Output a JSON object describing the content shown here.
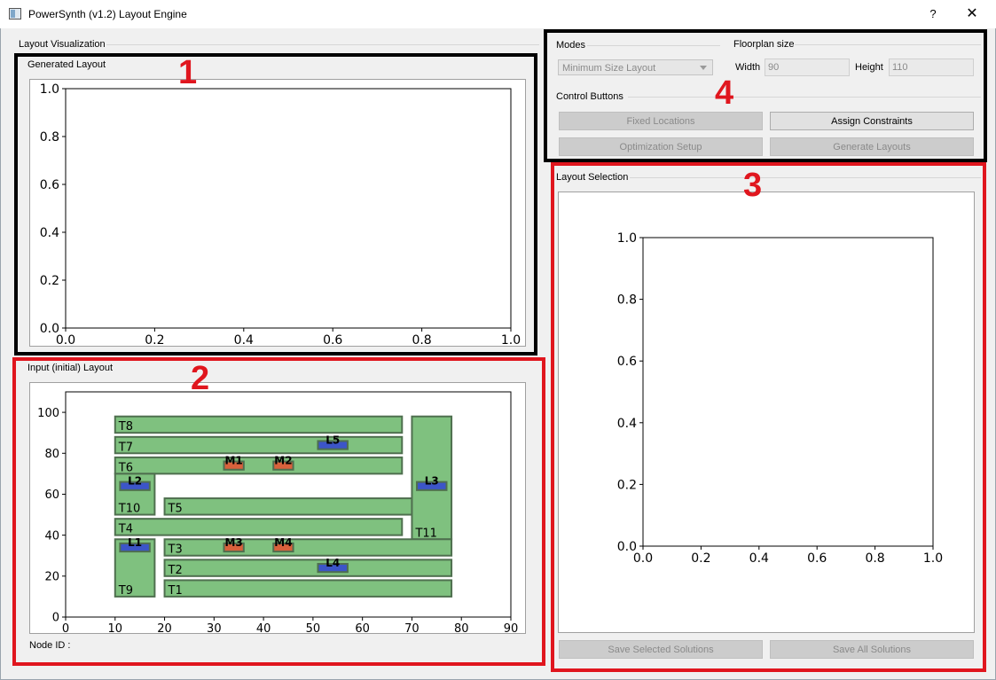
{
  "window": {
    "title": "PowerSynth (v1.2) Layout Engine",
    "help": "?",
    "close": "✕"
  },
  "left": {
    "section_label": "Layout Visualization",
    "generated": {
      "title": "Generated Layout",
      "yticks": [
        "1.0",
        "0.8",
        "0.6",
        "0.4",
        "0.2",
        "0.0"
      ],
      "xticks": [
        "0.0",
        "0.2",
        "0.4",
        "0.6",
        "0.8",
        "1.0"
      ]
    },
    "input": {
      "title": "Input (initial) Layout",
      "node_id_label": "Node ID :",
      "yticks": [
        "100",
        "80",
        "60",
        "40",
        "20",
        "0"
      ],
      "xticks": [
        "0",
        "10",
        "20",
        "30",
        "40",
        "50",
        "60",
        "70",
        "80",
        "90"
      ]
    }
  },
  "right": {
    "modes": {
      "title": "Modes",
      "selected": "Minimum Size Layout"
    },
    "floorplan": {
      "title": "Floorplan size",
      "width_label": "Width",
      "width_value": "90",
      "height_label": "Height",
      "height_value": "110"
    },
    "control": {
      "title": "Control Buttons",
      "fixed_locations": "Fixed Locations",
      "assign_constraints": "Assign Constraints",
      "optimization_setup": "Optimization Setup",
      "generate_layouts": "Generate Layouts"
    },
    "selection": {
      "title": "Layout Selection",
      "yticks": [
        "1.0",
        "0.8",
        "0.6",
        "0.4",
        "0.2",
        "0.0"
      ],
      "xticks": [
        "0.0",
        "0.2",
        "0.4",
        "0.6",
        "0.8",
        "1.0"
      ],
      "save_selected": "Save Selected Solutions",
      "save_all": "Save All Solutions"
    }
  },
  "annotations": {
    "n1": "1",
    "n2": "2",
    "n3": "3",
    "n4": "4"
  },
  "colors": {
    "trace": "#7fc17f",
    "trace_edge": "#4f6f4f",
    "lead": "#3c55c8",
    "mosfet": "#d8613c",
    "highlight_red": "#e0161e"
  },
  "chart_data": [
    {
      "type": "scatter",
      "title": "Generated Layout",
      "xlim": [
        0,
        1
      ],
      "ylim": [
        0,
        1
      ],
      "series": []
    },
    {
      "type": "layout",
      "title": "Input (initial) Layout",
      "xlim": [
        0,
        90
      ],
      "ylim": [
        0,
        110
      ],
      "traces": [
        {
          "label": "T8",
          "x": 10,
          "y": 90,
          "w": 58,
          "h": 8
        },
        {
          "label": "T7",
          "x": 10,
          "y": 80,
          "w": 58,
          "h": 8
        },
        {
          "label": "T6",
          "x": 10,
          "y": 70,
          "w": 58,
          "h": 8
        },
        {
          "label": "T10",
          "x": 10,
          "y": 50,
          "w": 8,
          "h": 20
        },
        {
          "label": "T5",
          "x": 20,
          "y": 50,
          "w": 50,
          "h": 8
        },
        {
          "label": "T4",
          "x": 10,
          "y": 40,
          "w": 58,
          "h": 8
        },
        {
          "label": "T11",
          "x": 70,
          "y": 38,
          "w": 8,
          "h": 60
        },
        {
          "label": "T3",
          "x": 20,
          "y": 30,
          "w": 58,
          "h": 8
        },
        {
          "label": "T9",
          "x": 10,
          "y": 10,
          "w": 8,
          "h": 28
        },
        {
          "label": "T2",
          "x": 20,
          "y": 20,
          "w": 58,
          "h": 8
        },
        {
          "label": "T1",
          "x": 20,
          "y": 10,
          "w": 58,
          "h": 8
        }
      ],
      "leads": [
        {
          "label": "L5",
          "x": 51,
          "y": 82,
          "w": 6,
          "h": 4
        },
        {
          "label": "L2",
          "x": 11,
          "y": 62,
          "w": 6,
          "h": 4
        },
        {
          "label": "L3",
          "x": 71,
          "y": 62,
          "w": 6,
          "h": 4
        },
        {
          "label": "L1",
          "x": 11,
          "y": 32,
          "w": 6,
          "h": 4
        },
        {
          "label": "L4",
          "x": 51,
          "y": 22,
          "w": 6,
          "h": 4
        }
      ],
      "devices": [
        {
          "label": "M1",
          "x": 32,
          "y": 72,
          "w": 4,
          "h": 4
        },
        {
          "label": "M2",
          "x": 42,
          "y": 72,
          "w": 4,
          "h": 4
        },
        {
          "label": "M3",
          "x": 32,
          "y": 32,
          "w": 4,
          "h": 4
        },
        {
          "label": "M4",
          "x": 42,
          "y": 32,
          "w": 4,
          "h": 4
        }
      ]
    },
    {
      "type": "scatter",
      "title": "Layout Selection",
      "xlim": [
        0,
        1
      ],
      "ylim": [
        0,
        1
      ],
      "series": []
    }
  ]
}
